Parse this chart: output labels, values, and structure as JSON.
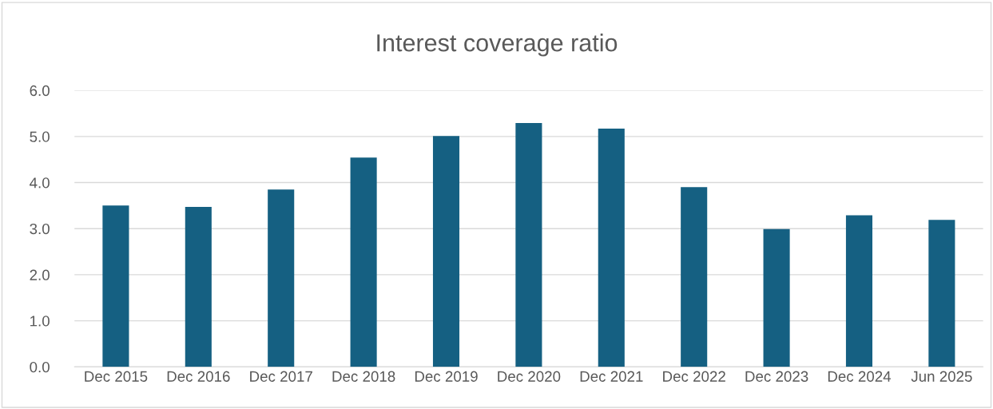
{
  "chart_data": {
    "type": "bar",
    "title": "Interest coverage ratio",
    "categories": [
      "Dec 2015",
      "Dec 2016",
      "Dec 2017",
      "Dec 2018",
      "Dec 2019",
      "Dec 2020",
      "Dec 2021",
      "Dec 2022",
      "Dec 2023",
      "Dec 2024",
      "Jun 2025"
    ],
    "values": [
      3.5,
      3.47,
      3.85,
      4.54,
      5.01,
      5.29,
      5.17,
      3.9,
      2.99,
      3.29,
      3.19
    ],
    "color": "#156082",
    "ylim": [
      0,
      6
    ],
    "yticks": [
      {
        "value": 0,
        "label": "0.0"
      },
      {
        "value": 1,
        "label": "1.0"
      },
      {
        "value": 2,
        "label": "2.0"
      },
      {
        "value": 3,
        "label": "3.0"
      },
      {
        "value": 4,
        "label": "4.0"
      },
      {
        "value": 5,
        "label": "5.0"
      },
      {
        "value": 6,
        "label": "6.0"
      }
    ],
    "grid": "y"
  }
}
